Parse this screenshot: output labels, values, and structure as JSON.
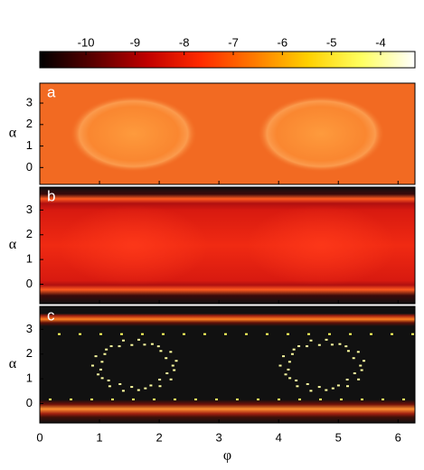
{
  "chart_data": [
    {
      "type": "colorbar",
      "clim": [
        -10.94,
        -3.3
      ],
      "ticks": [
        -10,
        -9,
        -8,
        -7,
        -6,
        -5,
        -4
      ],
      "colors": [
        "#000000",
        "#5a0000",
        "#c00000",
        "#ff2a00",
        "#ff7a00",
        "#ffd000",
        "#ffff60",
        "#ffffff"
      ]
    },
    {
      "type": "heatmap",
      "panel_label": "a",
      "ylabel": "α",
      "xlim": [
        0,
        6.2832
      ],
      "xticks": [
        0,
        1,
        2,
        3,
        4,
        5,
        6
      ],
      "ylim": [
        -0.7854,
        3.927
      ],
      "yticks": [
        0,
        1,
        2,
        3
      ]
    },
    {
      "type": "heatmap",
      "panel_label": "b",
      "ylabel": "α",
      "xlim": [
        0,
        6.2832
      ],
      "xticks": [
        0,
        1,
        2,
        3,
        4,
        5,
        6
      ],
      "ylim": [
        -0.7854,
        3.927
      ],
      "yticks": [
        0,
        1,
        2,
        3
      ]
    },
    {
      "type": "heatmap",
      "panel_label": "c",
      "ylabel": "α",
      "xlabel": "φ",
      "xlim": [
        0,
        6.2832
      ],
      "xticks": [
        0,
        1,
        2,
        3,
        4,
        5,
        6
      ],
      "ylim": [
        -0.7854,
        3.927
      ],
      "yticks": [
        0,
        1,
        2,
        3
      ]
    }
  ]
}
